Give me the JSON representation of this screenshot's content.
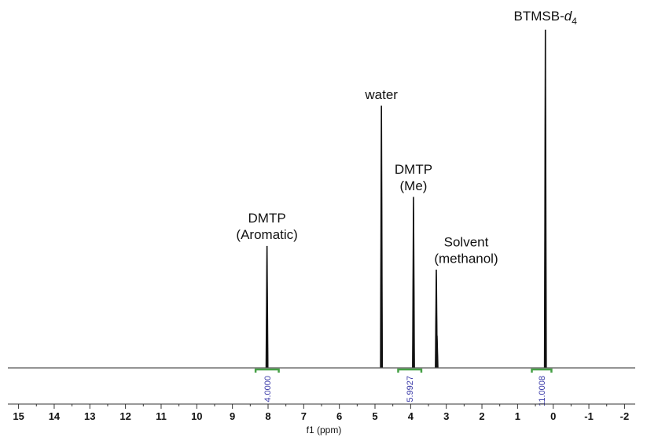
{
  "chart_data": {
    "type": "line",
    "title": "",
    "xlabel": "f1 (ppm)",
    "ylabel": "",
    "xlim": [
      15.3,
      -2.3
    ],
    "x_reversed": true,
    "xticks": [
      15,
      14,
      13,
      12,
      11,
      10,
      9,
      8,
      7,
      6,
      5,
      4,
      3,
      2,
      1,
      0,
      -1,
      -2
    ],
    "peaks": [
      {
        "shift": 8.03,
        "height": 0.36,
        "label_lines": [
          "DMTP",
          "(Aromatic)"
        ]
      },
      {
        "shift": 4.82,
        "height": 0.775,
        "label_lines": [
          "water"
        ]
      },
      {
        "shift": 3.92,
        "height": 0.505,
        "label_lines": [
          "DMTP",
          "(Me)"
        ]
      },
      {
        "shift": 3.28,
        "height": 0.29,
        "label_lines": [
          "Solvent",
          "(methanol)"
        ]
      },
      {
        "shift": 3.26,
        "height": 0.095,
        "label_lines": []
      },
      {
        "shift": 0.22,
        "height": 1.0,
        "label_lines": []
      }
    ],
    "reference_label": {
      "base": "BTMSB-",
      "italic": "d",
      "subscript": "4"
    },
    "integrals": [
      {
        "from": 8.35,
        "to": 7.7,
        "value": "4.0000"
      },
      {
        "from": 4.35,
        "to": 3.7,
        "value": "5.9927"
      },
      {
        "from": 0.6,
        "to": 0.05,
        "value": "11.0008"
      }
    ],
    "colors": {
      "trace": "#111111",
      "integral": "#46a046",
      "integral_text": "#3a3aa8",
      "axis": "#333333"
    }
  }
}
